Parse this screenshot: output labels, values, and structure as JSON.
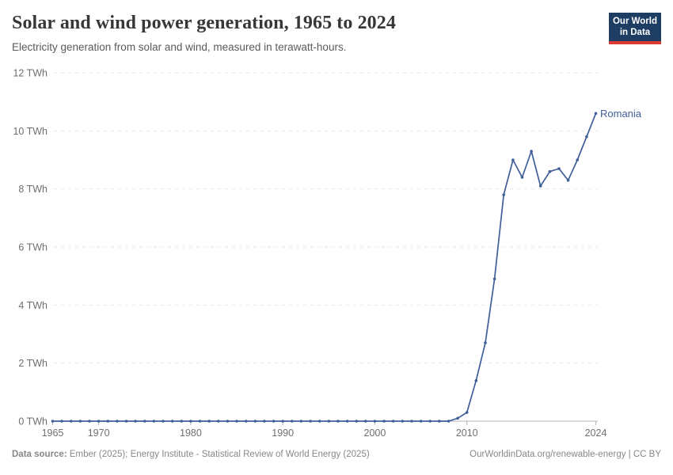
{
  "header": {
    "title": "Solar and wind power generation, 1965 to 2024",
    "subtitle": "Electricity generation from solar and wind, measured in terawatt-hours.",
    "logo": {
      "line1": "Our World",
      "line2": "in Data",
      "bg_color": "#1d3d63",
      "accent_color": "#dc3a34"
    }
  },
  "chart_data": {
    "type": "line",
    "title": "Solar and wind power generation, 1965 to 2024",
    "unit": "TWh",
    "xlim": [
      1965,
      2024
    ],
    "ylim": [
      0,
      12
    ],
    "x_ticks": [
      1965,
      1970,
      1980,
      1990,
      2000,
      2010,
      2024
    ],
    "y_ticks": [
      0,
      2,
      4,
      6,
      8,
      10,
      12
    ],
    "y_tick_suffix": " TWh",
    "grid": "horizontal-dashed",
    "legend_position": "end-of-line-label",
    "x": [
      1965,
      1966,
      1967,
      1968,
      1969,
      1970,
      1971,
      1972,
      1973,
      1974,
      1975,
      1976,
      1977,
      1978,
      1979,
      1980,
      1981,
      1982,
      1983,
      1984,
      1985,
      1986,
      1987,
      1988,
      1989,
      1990,
      1991,
      1992,
      1993,
      1994,
      1995,
      1996,
      1997,
      1998,
      1999,
      2000,
      2001,
      2002,
      2003,
      2004,
      2005,
      2006,
      2007,
      2008,
      2009,
      2010,
      2011,
      2012,
      2013,
      2014,
      2015,
      2016,
      2017,
      2018,
      2019,
      2020,
      2021,
      2022,
      2023,
      2024
    ],
    "series": [
      {
        "name": "Romania",
        "color": "#3f5f99",
        "values": [
          0,
          0,
          0,
          0,
          0,
          0,
          0,
          0,
          0,
          0,
          0,
          0,
          0,
          0,
          0,
          0,
          0,
          0,
          0,
          0,
          0,
          0,
          0,
          0,
          0,
          0,
          0,
          0,
          0,
          0,
          0,
          0,
          0,
          0,
          0,
          0,
          0,
          0,
          0,
          0,
          0,
          0,
          0,
          0,
          0.1,
          0.3,
          1.4,
          2.7,
          4.9,
          7.8,
          9.0,
          8.4,
          9.3,
          8.1,
          8.6,
          8.7,
          8.3,
          9.0,
          9.8,
          10.6
        ]
      }
    ],
    "colors": {
      "gridline": "#e6e6e6",
      "axis": "#b3b3b3",
      "tick_label": "#6e6e6e"
    }
  },
  "footer": {
    "datasource_label": "Data source:",
    "datasource_text": " Ember (2025); Energy Institute - Statistical Review of World Energy (2025)",
    "attribution": "OurWorldinData.org/renewable-energy | CC BY"
  }
}
